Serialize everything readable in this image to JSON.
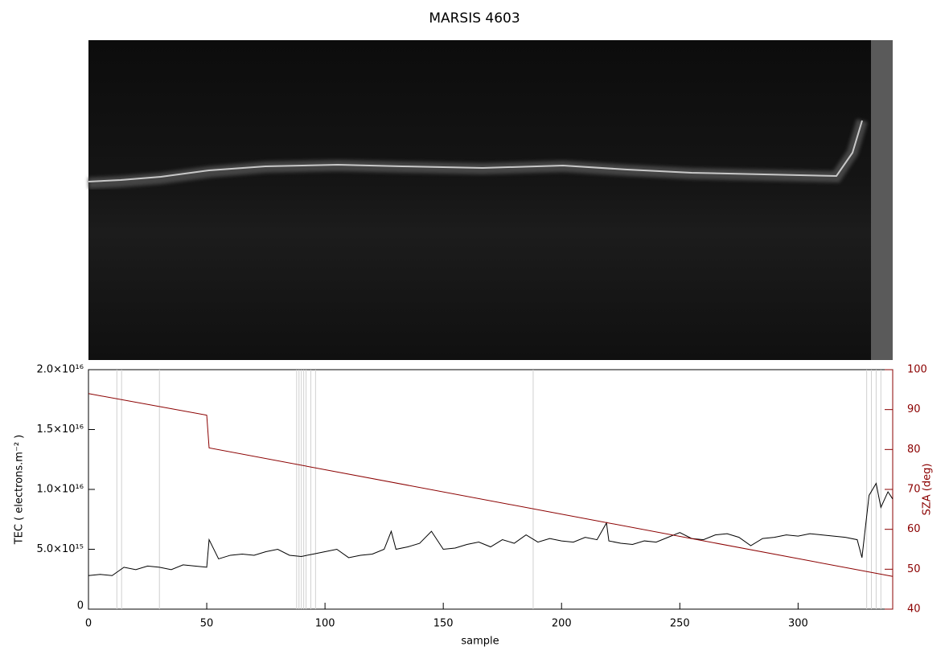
{
  "chart_data": {
    "type": "line",
    "title": "MARSIS 4603",
    "x_label": "sample",
    "y_label": "TEC ( electrons.m⁻² )",
    "y2_label": "SZA (deg)",
    "xlim": [
      0,
      340
    ],
    "xticks": [
      0,
      50,
      100,
      150,
      200,
      250,
      300
    ],
    "ylim": [
      0,
      2e+16
    ],
    "yticks": [
      0,
      {
        "value": 5000000000000000.0,
        "label": "5.0×10¹⁵"
      },
      {
        "value": 1e+16,
        "label": "1.0×10¹⁶"
      },
      {
        "value": 1.5e+16,
        "label": "1.5×10¹⁶"
      },
      {
        "value": 2e+16,
        "label": "2.0×10¹⁶"
      }
    ],
    "y2lim": [
      40,
      100
    ],
    "y2ticks": [
      40,
      50,
      60,
      70,
      80,
      90,
      100
    ],
    "markers": [
      12,
      14,
      30,
      88,
      89,
      90,
      91,
      92,
      94,
      96,
      188,
      329,
      331,
      333,
      335
    ],
    "marker_color": "#d0d0d0",
    "x": [
      0,
      5,
      10,
      15,
      20,
      25,
      30,
      35,
      40,
      45,
      50,
      51,
      55,
      60,
      65,
      70,
      75,
      80,
      85,
      90,
      95,
      100,
      105,
      110,
      115,
      120,
      125,
      128,
      130,
      135,
      140,
      145,
      150,
      155,
      160,
      165,
      170,
      175,
      180,
      185,
      190,
      195,
      200,
      205,
      210,
      215,
      219,
      220,
      225,
      230,
      235,
      240,
      245,
      250,
      255,
      260,
      265,
      270,
      275,
      280,
      285,
      290,
      295,
      300,
      305,
      310,
      315,
      320,
      325,
      327,
      330,
      333,
      335,
      338,
      340
    ],
    "series": [
      {
        "name": "TEC",
        "color": "#000000",
        "values": [
          2800000000000000.0,
          2900000000000000.0,
          2800000000000000.0,
          3500000000000000.0,
          3300000000000000.0,
          3600000000000000.0,
          3500000000000000.0,
          3300000000000000.0,
          3700000000000000.0,
          3600000000000000.0,
          3500000000000000.0,
          5800000000000000.0,
          4200000000000000.0,
          4500000000000000.0,
          4600000000000000.0,
          4500000000000000.0,
          4800000000000000.0,
          5000000000000000.0,
          4500000000000000.0,
          4400000000000000.0,
          4600000000000000.0,
          4800000000000000.0,
          5000000000000000.0,
          4300000000000000.0,
          4500000000000000.0,
          4600000000000000.0,
          5000000000000000.0,
          6500000000000000.0,
          5000000000000000.0,
          5200000000000000.0,
          5500000000000000.0,
          6500000000000000.0,
          5000000000000000.0,
          5100000000000000.0,
          5400000000000000.0,
          5600000000000000.0,
          5200000000000000.0,
          5800000000000000.0,
          5500000000000000.0,
          6200000000000000.0,
          5600000000000000.0,
          5900000000000000.0,
          5700000000000000.0,
          5600000000000000.0,
          6000000000000000.0,
          5800000000000000.0,
          7200000000000000.0,
          5700000000000000.0,
          5500000000000000.0,
          5400000000000000.0,
          5700000000000000.0,
          5600000000000000.0,
          6000000000000000.0,
          6400000000000000.0,
          5900000000000000.0,
          5800000000000000.0,
          6200000000000000.0,
          6300000000000000.0,
          6000000000000000.0,
          5300000000000000.0,
          5900000000000000.0,
          6000000000000000.0,
          6200000000000000.0,
          6100000000000000.0,
          6300000000000000.0,
          6200000000000000.0,
          6100000000000000.0,
          6000000000000000.0,
          5800000000000000.0,
          4300000000000000.0,
          9500000000000000.0,
          1.05e+16,
          8500000000000000.0,
          9800000000000000.0,
          9200000000000000.0
        ]
      },
      {
        "name": "SZA",
        "color": "#8b0000",
        "axis": "y2",
        "x": [
          0,
          50,
          51,
          340
        ],
        "values": [
          94,
          88.6,
          80.4,
          48.2
        ]
      }
    ]
  }
}
